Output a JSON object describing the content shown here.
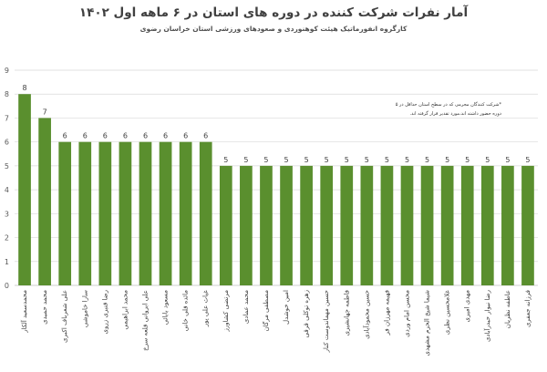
{
  "chart_data": {
    "type": "bar",
    "title": "آمار نفرات شرکت کننده در دوره های استان در ۶ ماهه اول ۱۴۰۲",
    "subtitle": "کارگروه انفورماتیک هیئت کوهنوردی و صعودهای ورزشی استان خراسان رضوی",
    "note_lines": [
      "*شرکت کنندگان مجرمی که در سطح استان حداقل در ۵",
      "دوره حضور داشته اند،مورد تقدیر قرار گرفته اند."
    ],
    "categories": [
      "محمدسعید آلکار",
      "محمد حمیدی",
      "علی شعرباف اکبری",
      "سارا خاموشی",
      "رضا قنبری زروی",
      "محمد ابراهیمی",
      "علی ابروانی قلعه سرخ",
      "مسعود بابائی",
      "مائده قلی خانی",
      "غیاث علی پور",
      "مرتضی کشاورز",
      "محمد عمادی",
      "مصطفی مرگان",
      "امین خوشدل",
      "زهره توکلی قرقی",
      "حسین مهماندوست کنار",
      "فاطمه جهانشیری",
      "حسین محمودآبادی",
      "فهیمه مهرزان فر",
      "محسن امام وردی",
      "شیما شیخ الحرم مشهدی",
      "غلامحسین نظری",
      "مهدی امیری",
      "رضا نیوار حیدرآبادی",
      "عاطفه نظریان",
      "فرزانه جعفری"
    ],
    "values": [
      8,
      7,
      6,
      6,
      6,
      6,
      6,
      6,
      6,
      6,
      5,
      5,
      5,
      5,
      5,
      5,
      5,
      5,
      5,
      5,
      5,
      5,
      5,
      5,
      5,
      5
    ],
    "ylim": [
      0,
      9
    ],
    "yticks": [
      0,
      1,
      2,
      3,
      4,
      5,
      6,
      7,
      8,
      9
    ],
    "grid": true,
    "legend": "none",
    "colors": {
      "bar": "#5a8f2e",
      "grid": "#d9d9d9",
      "axis": "#bfbfbf",
      "text": "#595959",
      "label": "#404040"
    }
  }
}
